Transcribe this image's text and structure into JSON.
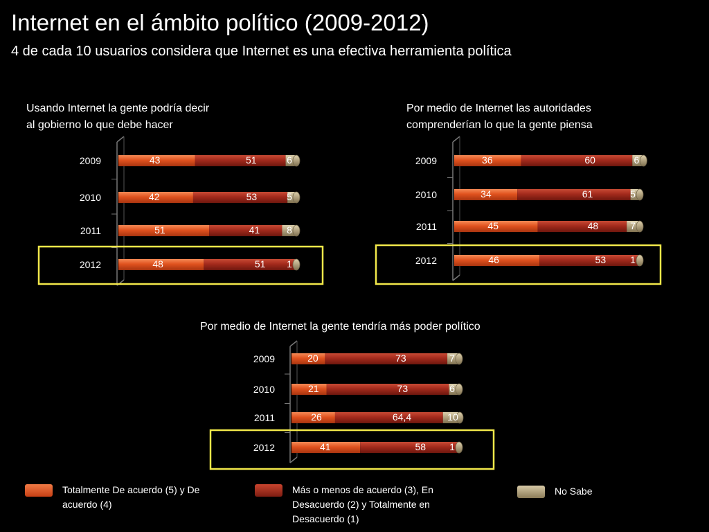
{
  "header": {
    "title": "Internet en el ámbito político (2009-2012)",
    "subtitle": "4 de cada 10 usuarios considera que Internet es una efectiva herramienta política"
  },
  "colors": {
    "agree": "#e0521f",
    "neutral": "#a32a1c",
    "dontknow": "#b5a683",
    "highlight": "#f2e84a"
  },
  "chart_data": [
    {
      "type": "bar",
      "orientation": "horizontal",
      "stacked": true,
      "title_line1": "Usando Internet la gente podría decir",
      "title_line2": "al gobierno lo que debe hacer",
      "categories": [
        "2009",
        "2010",
        "2011",
        "2012"
      ],
      "series": [
        {
          "name": "Totalmente De acuerdo (5) y De acuerdo (4)",
          "values": [
            43,
            42,
            51,
            48
          ],
          "labels": [
            "43",
            "42",
            "51",
            "48"
          ]
        },
        {
          "name": "Más o menos de acuerdo (3), En Desacuerdo (2) y Totalmente en Desacuerdo (1)",
          "values": [
            51,
            53,
            41,
            51
          ],
          "labels": [
            "51",
            "53",
            "41",
            "51"
          ]
        },
        {
          "name": "No Sabe",
          "values": [
            6,
            5,
            8,
            1
          ],
          "labels": [
            "6",
            "5",
            "8",
            "1"
          ]
        }
      ],
      "xlim": [
        0,
        100
      ],
      "highlight": "2012"
    },
    {
      "type": "bar",
      "orientation": "horizontal",
      "stacked": true,
      "title_line1": "Por medio de Internet las autoridades",
      "title_line2": "comprenderían lo que la gente piensa",
      "categories": [
        "2009",
        "2010",
        "2011",
        "2012"
      ],
      "series": [
        {
          "name": "Totalmente De acuerdo (5) y De acuerdo (4)",
          "values": [
            36,
            34,
            45,
            46
          ],
          "labels": [
            "36",
            "34",
            "45",
            "46"
          ]
        },
        {
          "name": "Más o menos de acuerdo (3), En Desacuerdo (2) y Totalmente en Desacuerdo (1)",
          "values": [
            60,
            61,
            48,
            53
          ],
          "labels": [
            "60",
            "61",
            "48",
            "53"
          ]
        },
        {
          "name": "No Sabe",
          "values": [
            6,
            5,
            7,
            1
          ],
          "labels": [
            "6",
            "5",
            "7",
            "1"
          ]
        }
      ],
      "xlim": [
        0,
        100
      ],
      "highlight": "2012"
    },
    {
      "type": "bar",
      "orientation": "horizontal",
      "stacked": true,
      "title_line1": "Por medio de Internet la gente tendría más poder político",
      "title_line2": "",
      "categories": [
        "2009",
        "2010",
        "2011",
        "2012"
      ],
      "series": [
        {
          "name": "Totalmente De acuerdo (5) y De acuerdo (4)",
          "values": [
            20,
            21,
            26,
            41
          ],
          "labels": [
            "20",
            "21",
            "26",
            "41"
          ]
        },
        {
          "name": "Más o menos de acuerdo (3), En Desacuerdo (2) y Totalmente en Desacuerdo (1)",
          "values": [
            73,
            73,
            64.4,
            58
          ],
          "labels": [
            "73",
            "73",
            "64,4",
            "58"
          ]
        },
        {
          "name": "No Sabe",
          "values": [
            7,
            6,
            10,
            1
          ],
          "labels": [
            "7",
            "6",
            "10",
            "1"
          ]
        }
      ],
      "xlim": [
        0,
        100
      ],
      "highlight": "2012"
    }
  ],
  "legend": {
    "agree_line1": "Totalmente De acuerdo (5) y De",
    "agree_line2": "acuerdo (4)",
    "neutral_line1": "Más o menos de acuerdo (3), En",
    "neutral_line2": "Desacuerdo (2)  y Totalmente en",
    "neutral_line3": "Desacuerdo (1)",
    "dontknow": "No Sabe"
  }
}
